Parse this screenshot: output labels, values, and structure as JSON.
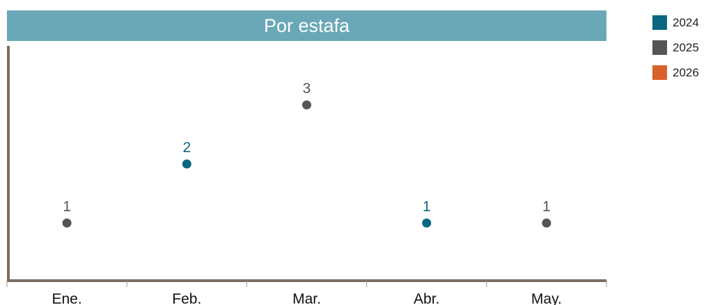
{
  "chart_data": {
    "type": "scatter",
    "title": "Por estafa",
    "categories": [
      "Ene.",
      "Feb.",
      "Mar.",
      "Abr.",
      "May."
    ],
    "ylim": [
      0,
      4
    ],
    "legend_position": "top-right",
    "series": [
      {
        "name": "2024",
        "color": "#0b6780",
        "points": [
          {
            "x": "Feb.",
            "y": 2
          },
          {
            "x": "Abr.",
            "y": 1
          }
        ]
      },
      {
        "name": "2025",
        "color": "#555555",
        "points": [
          {
            "x": "Ene.",
            "y": 1
          },
          {
            "x": "Mar.",
            "y": 3
          },
          {
            "x": "May.",
            "y": 1
          }
        ]
      },
      {
        "name": "2026",
        "color": "#d9622b",
        "points": []
      }
    ]
  }
}
